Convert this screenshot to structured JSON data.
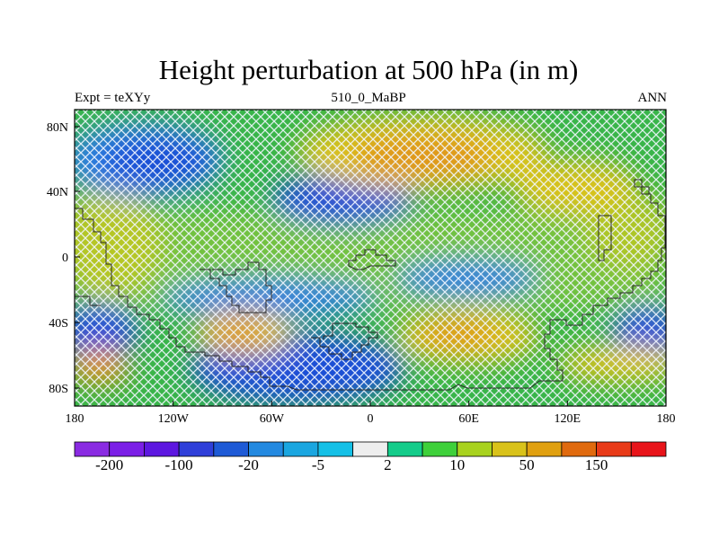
{
  "title": "Height perturbation at 500 hPa (in m)",
  "subtitle_left": "Expt = teXYy",
  "subtitle_center": "510_0_MaBP",
  "subtitle_right": "ANN",
  "lat_ticks": [
    "80N",
    "40N",
    "0",
    "40S",
    "80S"
  ],
  "lon_ticks": [
    "180",
    "120W",
    "60W",
    "0",
    "60E",
    "120E",
    "180"
  ],
  "colorbar": {
    "colors": [
      "#8a2be2",
      "#7b1fe6",
      "#5d17e0",
      "#2f3fd9",
      "#1e5ad6",
      "#2389e0",
      "#1aa6e0",
      "#15c0e6",
      "#eeeeee",
      "#14cc8a",
      "#3ed03a",
      "#a8d21e",
      "#d9c21a",
      "#e0a010",
      "#e06a0e",
      "#e83a18",
      "#e8141a"
    ],
    "labels": [
      {
        "text": "-200",
        "boundary": 1
      },
      {
        "text": "-100",
        "boundary": 3
      },
      {
        "text": "-20",
        "boundary": 5
      },
      {
        "text": "-5",
        "boundary": 7
      },
      {
        "text": "2",
        "boundary": 9
      },
      {
        "text": "10",
        "boundary": 11
      },
      {
        "text": "50",
        "boundary": 13
      },
      {
        "text": "150",
        "boundary": 15
      }
    ]
  },
  "field_colors": {
    "background": "#39b54a",
    "deep_blue": "#1f4fd6",
    "mid_blue": "#2d7fe0",
    "yellow": "#d9c21a",
    "orange": "#e0961a",
    "hatch": "#eef4ff"
  }
}
